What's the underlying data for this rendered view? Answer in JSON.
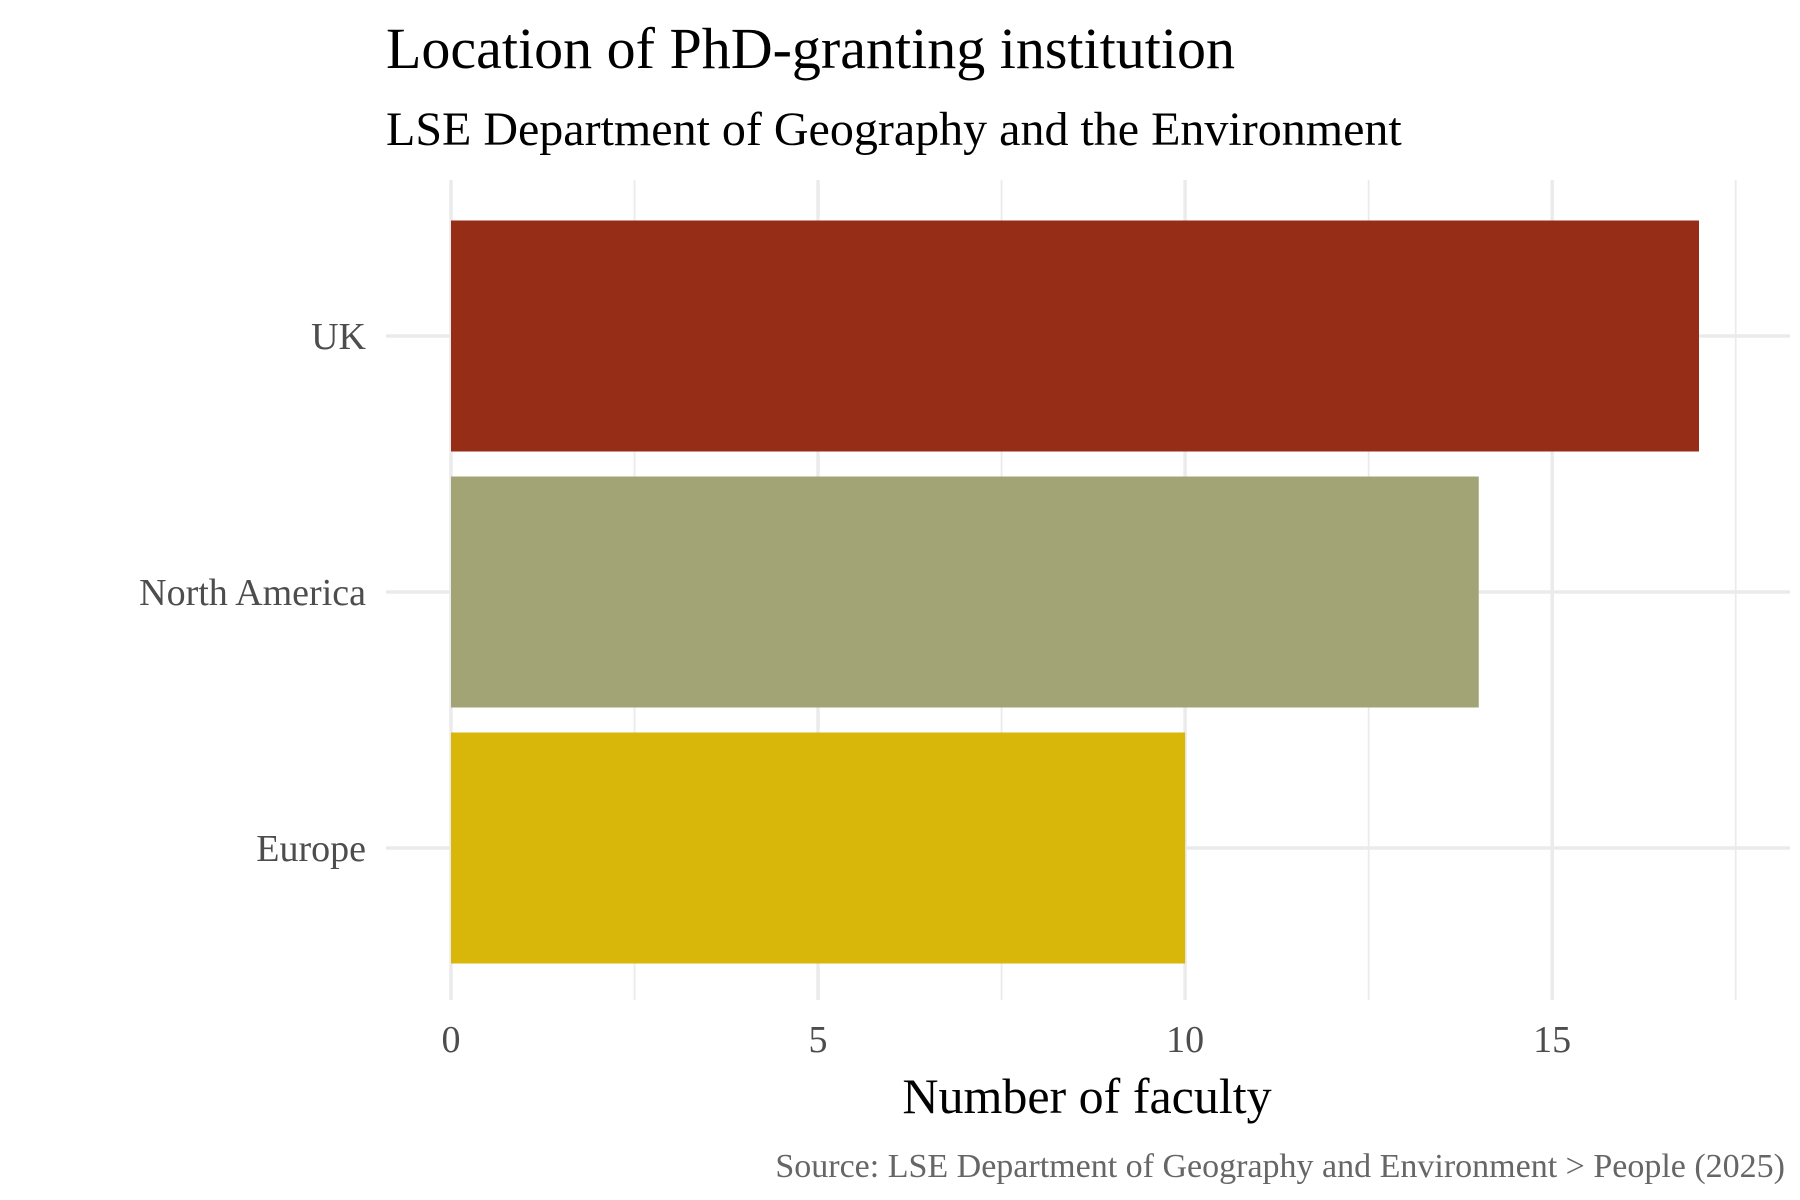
{
  "chart_data": {
    "type": "bar",
    "orientation": "horizontal",
    "title": "Location of PhD-granting institution",
    "subtitle": "LSE Department of Geography and the Environment",
    "categories": [
      "UK",
      "North America",
      "Europe"
    ],
    "values": [
      17,
      14,
      10
    ],
    "colors": [
      "#952D17",
      "#A2A476",
      "#D8B70A"
    ],
    "xlabel": "Number of faculty",
    "ylabel": "",
    "xlim": [
      0,
      17.5
    ],
    "x_ticks": [
      "0",
      "5",
      "10",
      "15"
    ],
    "x_tick_values": [
      0,
      5,
      10,
      15
    ],
    "x_minor_tick_values": [
      2.5,
      7.5,
      12.5,
      17.5
    ],
    "grid": true,
    "legend": "none",
    "caption": "Source: LSE Department of Geography and Environment > People (2025)"
  }
}
